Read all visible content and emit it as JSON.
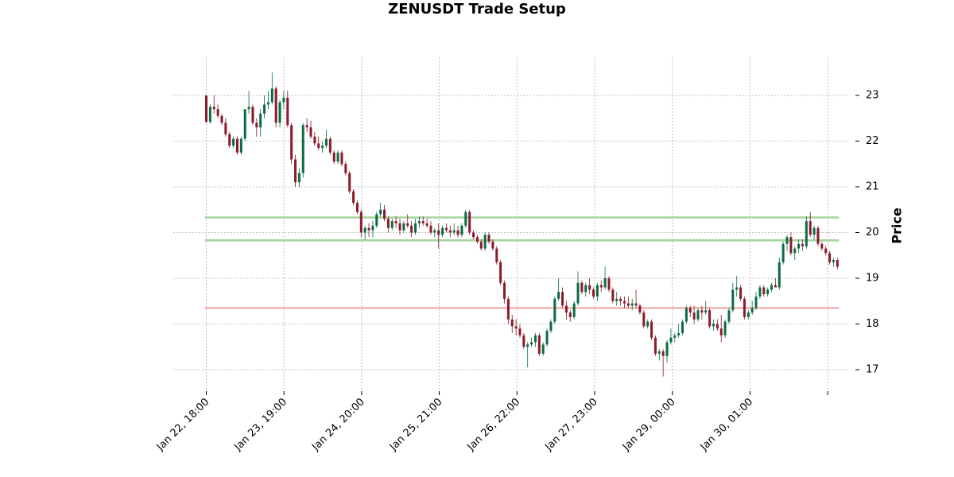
{
  "chart_data": {
    "type": "candlestick",
    "title": "ZENUSDT Trade Setup",
    "ylabel": "Price",
    "xlabel": "",
    "ylim": [
      16.55,
      23.8
    ],
    "yticks": [
      17,
      18,
      19,
      20,
      21,
      22,
      23
    ],
    "xticks": [
      "Jan 22, 18:00",
      "Jan 23, 19:00",
      "Jan 24, 20:00",
      "Jan 25, 21:00",
      "Jan 26, 22:00",
      "Jan 27, 23:00",
      "Jan 29, 00:00",
      "Jan 30, 01:00",
      ""
    ],
    "grid": true,
    "colors": {
      "up": "#0b6b46",
      "down": "#8b1a2b",
      "long_level": "#a8d5a2",
      "short_level": "#f4b2b2"
    },
    "levels": [
      {
        "value": 20.33,
        "color": "#a8d5a2"
      },
      {
        "value": 19.83,
        "color": "#a8d5a2"
      },
      {
        "value": 18.35,
        "color": "#f4b2b2"
      }
    ],
    "candles": [
      [
        23.0,
        23.0,
        22.4,
        22.42
      ],
      [
        22.42,
        22.8,
        22.38,
        22.75
      ],
      [
        22.75,
        23.0,
        22.6,
        22.7
      ],
      [
        22.7,
        22.8,
        22.5,
        22.55
      ],
      [
        22.55,
        22.6,
        22.35,
        22.4
      ],
      [
        22.4,
        22.5,
        22.1,
        22.15
      ],
      [
        22.15,
        22.2,
        21.85,
        21.9
      ],
      [
        21.9,
        22.1,
        21.85,
        22.05
      ],
      [
        22.05,
        22.1,
        21.7,
        21.75
      ],
      [
        21.75,
        22.1,
        21.7,
        22.05
      ],
      [
        22.05,
        22.7,
        22.0,
        22.7
      ],
      [
        22.7,
        23.1,
        22.6,
        22.75
      ],
      [
        22.75,
        22.8,
        22.35,
        22.4
      ],
      [
        22.4,
        22.5,
        22.1,
        22.3
      ],
      [
        22.3,
        22.7,
        22.1,
        22.6
      ],
      [
        22.6,
        23.0,
        22.5,
        22.8
      ],
      [
        22.8,
        23.1,
        22.7,
        22.85
      ],
      [
        22.85,
        23.5,
        22.8,
        23.15
      ],
      [
        23.15,
        23.2,
        22.3,
        22.4
      ],
      [
        22.4,
        22.9,
        22.3,
        22.85
      ],
      [
        22.85,
        23.1,
        22.7,
        22.95
      ],
      [
        22.95,
        23.1,
        22.3,
        22.35
      ],
      [
        22.35,
        22.4,
        21.5,
        21.6
      ],
      [
        21.6,
        21.7,
        21.0,
        21.1
      ],
      [
        21.1,
        21.4,
        21.0,
        21.3
      ],
      [
        21.3,
        22.4,
        21.2,
        22.35
      ],
      [
        22.35,
        22.5,
        22.2,
        22.3
      ],
      [
        22.3,
        22.45,
        22.05,
        22.1
      ],
      [
        22.1,
        22.2,
        21.9,
        21.95
      ],
      [
        21.95,
        22.1,
        21.8,
        21.85
      ],
      [
        21.85,
        22.0,
        21.75,
        21.9
      ],
      [
        21.9,
        22.25,
        21.85,
        22.05
      ],
      [
        22.05,
        22.1,
        21.7,
        21.75
      ],
      [
        21.75,
        21.8,
        21.5,
        21.55
      ],
      [
        21.55,
        21.8,
        21.5,
        21.75
      ],
      [
        21.75,
        21.8,
        21.45,
        21.5
      ],
      [
        21.5,
        21.55,
        21.25,
        21.3
      ],
      [
        21.3,
        21.35,
        20.85,
        20.9
      ],
      [
        20.9,
        20.95,
        20.6,
        20.65
      ],
      [
        20.65,
        20.7,
        20.4,
        20.45
      ],
      [
        20.45,
        20.5,
        19.9,
        20.0
      ],
      [
        20.0,
        20.15,
        19.85,
        20.1
      ],
      [
        20.1,
        20.2,
        19.9,
        20.05
      ],
      [
        20.05,
        20.25,
        19.9,
        20.15
      ],
      [
        20.15,
        20.45,
        20.1,
        20.4
      ],
      [
        20.4,
        20.65,
        20.35,
        20.5
      ],
      [
        20.5,
        20.6,
        20.25,
        20.3
      ],
      [
        20.3,
        20.35,
        20.0,
        20.1
      ],
      [
        20.1,
        20.3,
        20.05,
        20.25
      ],
      [
        20.25,
        20.35,
        20.1,
        20.2
      ],
      [
        20.2,
        20.3,
        19.95,
        20.05
      ],
      [
        20.05,
        20.25,
        20.0,
        20.2
      ],
      [
        20.2,
        20.4,
        20.1,
        20.15
      ],
      [
        20.15,
        20.25,
        19.9,
        20.0
      ],
      [
        20.0,
        20.3,
        19.95,
        20.2
      ],
      [
        20.2,
        20.35,
        20.1,
        20.25
      ],
      [
        20.25,
        20.35,
        20.15,
        20.2
      ],
      [
        20.2,
        20.3,
        20.1,
        20.15
      ],
      [
        20.15,
        20.25,
        19.95,
        20.0
      ],
      [
        20.0,
        20.1,
        19.9,
        20.05
      ],
      [
        20.05,
        20.2,
        19.65,
        19.95
      ],
      [
        19.95,
        20.15,
        19.9,
        20.1
      ],
      [
        20.1,
        20.2,
        20.0,
        20.05
      ],
      [
        20.05,
        20.15,
        19.9,
        20.0
      ],
      [
        20.0,
        20.2,
        19.95,
        20.05
      ],
      [
        20.05,
        20.15,
        19.9,
        19.95
      ],
      [
        19.95,
        20.2,
        19.9,
        20.15
      ],
      [
        20.15,
        20.5,
        20.1,
        20.45
      ],
      [
        20.45,
        20.5,
        19.95,
        20.0
      ],
      [
        20.0,
        20.05,
        19.85,
        19.9
      ],
      [
        19.9,
        19.95,
        19.75,
        19.8
      ],
      [
        19.8,
        19.85,
        19.6,
        19.65
      ],
      [
        19.65,
        20.0,
        19.6,
        19.95
      ],
      [
        19.95,
        20.0,
        19.75,
        19.8
      ],
      [
        19.8,
        19.85,
        19.6,
        19.65
      ],
      [
        19.65,
        19.7,
        19.3,
        19.35
      ],
      [
        19.35,
        19.4,
        18.85,
        18.9
      ],
      [
        18.9,
        18.95,
        18.45,
        18.55
      ],
      [
        18.55,
        18.6,
        18.0,
        18.1
      ],
      [
        18.1,
        18.2,
        17.8,
        17.95
      ],
      [
        17.95,
        18.1,
        17.75,
        17.9
      ],
      [
        17.9,
        18.0,
        17.7,
        17.75
      ],
      [
        17.75,
        17.8,
        17.45,
        17.5
      ],
      [
        17.5,
        17.6,
        17.05,
        17.55
      ],
      [
        17.55,
        17.7,
        17.5,
        17.6
      ],
      [
        17.6,
        17.8,
        17.5,
        17.75
      ],
      [
        17.75,
        17.8,
        17.3,
        17.35
      ],
      [
        17.35,
        17.6,
        17.3,
        17.55
      ],
      [
        17.55,
        17.9,
        17.5,
        17.85
      ],
      [
        17.85,
        18.1,
        17.8,
        18.05
      ],
      [
        18.05,
        18.6,
        18.0,
        18.55
      ],
      [
        18.55,
        19.0,
        18.5,
        18.7
      ],
      [
        18.7,
        18.8,
        18.35,
        18.4
      ],
      [
        18.4,
        18.5,
        18.1,
        18.25
      ],
      [
        18.25,
        18.3,
        18.05,
        18.15
      ],
      [
        18.15,
        18.5,
        18.1,
        18.45
      ],
      [
        18.45,
        19.15,
        18.4,
        18.9
      ],
      [
        18.9,
        18.95,
        18.65,
        18.7
      ],
      [
        18.7,
        18.9,
        18.6,
        18.85
      ],
      [
        18.85,
        19.0,
        18.65,
        18.75
      ],
      [
        18.75,
        18.8,
        18.55,
        18.6
      ],
      [
        18.6,
        18.9,
        18.5,
        18.85
      ],
      [
        18.85,
        18.95,
        18.7,
        18.8
      ],
      [
        18.8,
        19.25,
        18.75,
        19.0
      ],
      [
        19.0,
        19.05,
        18.7,
        18.75
      ],
      [
        18.75,
        18.8,
        18.45,
        18.5
      ],
      [
        18.5,
        18.7,
        18.4,
        18.55
      ],
      [
        18.55,
        18.6,
        18.4,
        18.5
      ],
      [
        18.5,
        18.6,
        18.35,
        18.45
      ],
      [
        18.45,
        18.6,
        18.35,
        18.4
      ],
      [
        18.4,
        18.55,
        18.3,
        18.45
      ],
      [
        18.45,
        18.75,
        18.35,
        18.4
      ],
      [
        18.4,
        18.45,
        18.2,
        18.25
      ],
      [
        18.25,
        18.3,
        17.9,
        17.95
      ],
      [
        17.95,
        18.1,
        17.9,
        18.05
      ],
      [
        18.05,
        18.1,
        17.65,
        17.7
      ],
      [
        17.7,
        17.75,
        17.3,
        17.35
      ],
      [
        17.35,
        17.45,
        17.2,
        17.4
      ],
      [
        17.4,
        17.45,
        16.85,
        17.3
      ],
      [
        17.3,
        17.65,
        17.15,
        17.6
      ],
      [
        17.6,
        17.9,
        17.55,
        17.7
      ],
      [
        17.7,
        17.8,
        17.6,
        17.75
      ],
      [
        17.75,
        18.0,
        17.7,
        17.8
      ],
      [
        17.8,
        18.1,
        17.75,
        18.05
      ],
      [
        18.05,
        18.4,
        18.0,
        18.35
      ],
      [
        18.35,
        18.4,
        18.15,
        18.25
      ],
      [
        18.25,
        18.4,
        18.0,
        18.1
      ],
      [
        18.1,
        18.35,
        18.05,
        18.3
      ],
      [
        18.3,
        18.4,
        18.1,
        18.25
      ],
      [
        18.25,
        18.5,
        18.2,
        18.3
      ],
      [
        18.3,
        18.35,
        17.9,
        17.95
      ],
      [
        17.95,
        18.1,
        17.85,
        18.0
      ],
      [
        18.0,
        18.1,
        17.85,
        17.9
      ],
      [
        17.9,
        18.2,
        17.6,
        17.75
      ],
      [
        17.75,
        18.1,
        17.7,
        18.05
      ],
      [
        18.05,
        18.35,
        18.0,
        18.3
      ],
      [
        18.3,
        18.9,
        18.25,
        18.75
      ],
      [
        18.75,
        19.05,
        18.6,
        18.8
      ],
      [
        18.8,
        18.85,
        18.5,
        18.55
      ],
      [
        18.55,
        18.6,
        18.1,
        18.15
      ],
      [
        18.15,
        18.3,
        18.1,
        18.25
      ],
      [
        18.25,
        18.5,
        18.2,
        18.35
      ],
      [
        18.35,
        18.7,
        18.3,
        18.6
      ],
      [
        18.6,
        18.85,
        18.55,
        18.8
      ],
      [
        18.8,
        18.85,
        18.6,
        18.65
      ],
      [
        18.65,
        18.8,
        18.6,
        18.75
      ],
      [
        18.75,
        18.9,
        18.7,
        18.85
      ],
      [
        18.85,
        19.0,
        18.8,
        18.8
      ],
      [
        18.8,
        19.45,
        18.75,
        19.35
      ],
      [
        19.35,
        19.8,
        19.3,
        19.75
      ],
      [
        19.75,
        19.95,
        19.6,
        19.9
      ],
      [
        19.9,
        20.0,
        19.5,
        19.55
      ],
      [
        19.55,
        19.7,
        19.4,
        19.65
      ],
      [
        19.65,
        19.85,
        19.55,
        19.75
      ],
      [
        19.75,
        19.85,
        19.6,
        19.7
      ],
      [
        19.7,
        20.35,
        19.65,
        20.25
      ],
      [
        20.25,
        20.45,
        19.9,
        19.95
      ],
      [
        19.95,
        20.15,
        19.85,
        20.1
      ],
      [
        20.1,
        20.15,
        19.7,
        19.75
      ],
      [
        19.75,
        19.8,
        19.6,
        19.65
      ],
      [
        19.65,
        19.7,
        19.5,
        19.55
      ],
      [
        19.55,
        19.6,
        19.3,
        19.35
      ],
      [
        19.35,
        19.45,
        19.25,
        19.4
      ],
      [
        19.4,
        19.45,
        19.2,
        19.25
      ]
    ]
  }
}
